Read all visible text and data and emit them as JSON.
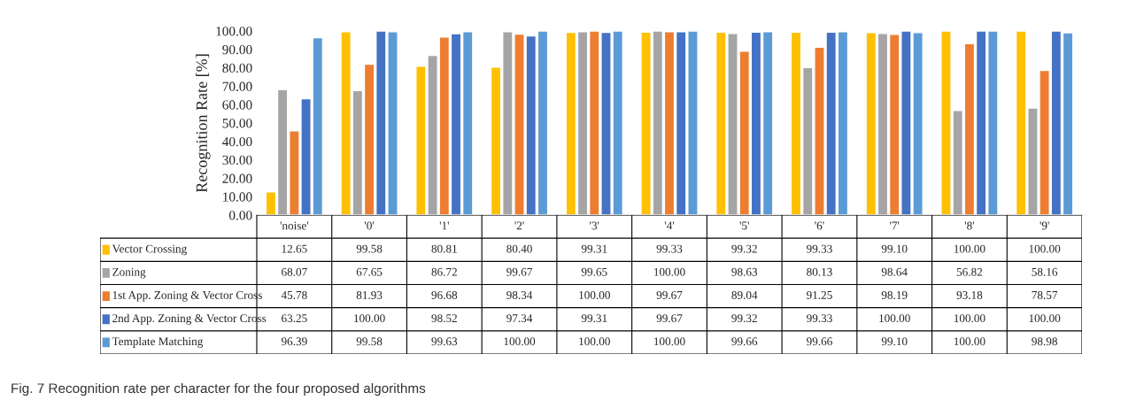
{
  "chart_data": {
    "type": "bar",
    "ylabel": "Recognition Rate [%]",
    "categories": [
      "'noise'",
      "'0'",
      "'1'",
      "'2'",
      "'3'",
      "'4'",
      "'5'",
      "'6'",
      "'7'",
      "'8'",
      "'9'"
    ],
    "series": [
      {
        "name": "Vector Crossing",
        "color": "#ffc000",
        "values": [
          12.65,
          99.58,
          80.81,
          80.4,
          99.31,
          99.33,
          99.32,
          99.33,
          99.1,
          100.0,
          100.0
        ],
        "value_labels": [
          "12.65",
          "99.58",
          "80.81",
          "80.40",
          "99.31",
          "99.33",
          "99.32",
          "99.33",
          "99.10",
          "100.00",
          "100.00"
        ]
      },
      {
        "name": "Zoning",
        "color": "#a5a5a5",
        "values": [
          68.07,
          67.65,
          86.72,
          99.67,
          99.65,
          100.0,
          98.63,
          80.13,
          98.64,
          56.82,
          58.16
        ],
        "value_labels": [
          "68.07",
          "67.65",
          "86.72",
          "99.67",
          "99.65",
          "100.00",
          "98.63",
          "80.13",
          "98.64",
          "56.82",
          "58.16"
        ]
      },
      {
        "name": "1st App. Zoning & Vector Cross",
        "color": "#ed7d31",
        "values": [
          45.78,
          81.93,
          96.68,
          98.34,
          100.0,
          99.67,
          89.04,
          91.25,
          98.19,
          93.18,
          78.57
        ],
        "value_labels": [
          "45.78",
          "81.93",
          "96.68",
          "98.34",
          "100.00",
          "99.67",
          "89.04",
          "91.25",
          "98.19",
          "93.18",
          "78.57"
        ]
      },
      {
        "name": "2nd App. Zoning & Vector Cross",
        "color": "#4472c4",
        "values": [
          63.25,
          100.0,
          98.52,
          97.34,
          99.31,
          99.67,
          99.32,
          99.33,
          100.0,
          100.0,
          100.0
        ],
        "value_labels": [
          "63.25",
          "100.00",
          "98.52",
          "97.34",
          "99.31",
          "99.67",
          "99.32",
          "99.33",
          "100.00",
          "100.00",
          "100.00"
        ]
      },
      {
        "name": "Template Matching",
        "color": "#5b9bd5",
        "values": [
          96.39,
          99.58,
          99.63,
          100.0,
          100.0,
          100.0,
          99.66,
          99.66,
          99.1,
          100.0,
          98.98
        ],
        "value_labels": [
          "96.39",
          "99.58",
          "99.63",
          "100.00",
          "100.00",
          "100.00",
          "99.66",
          "99.66",
          "99.10",
          "100.00",
          "98.98"
        ]
      }
    ],
    "ylim": [
      0,
      100
    ],
    "yticks": [
      {
        "value": 0,
        "label": "0.00"
      },
      {
        "value": 10,
        "label": "10.00"
      },
      {
        "value": 20,
        "label": "20.00"
      },
      {
        "value": 30,
        "label": "30.00"
      },
      {
        "value": 40,
        "label": "40.00"
      },
      {
        "value": 50,
        "label": "50.00"
      },
      {
        "value": 60,
        "label": "60.00"
      },
      {
        "value": 70,
        "label": "70.00"
      },
      {
        "value": 80,
        "label": "80.00"
      },
      {
        "value": 90,
        "label": "90.00"
      },
      {
        "value": 100,
        "label": "100.00"
      }
    ],
    "grid": false,
    "legend": "bottom",
    "annotations": [
      "Fig. 7 Recognition rate per character for the four proposed algorithms"
    ]
  }
}
